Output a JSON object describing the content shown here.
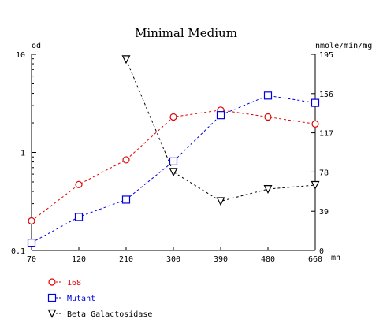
{
  "chart_data": {
    "type": "line",
    "title": "Minimal Medium",
    "x": [
      70,
      120,
      210,
      300,
      390,
      480,
      660
    ],
    "x_tick_labels": [
      "70",
      "120",
      "210",
      "300",
      "390",
      "480",
      "660"
    ],
    "x_unit": "mn",
    "xlim": [
      70,
      660
    ],
    "left_axis": {
      "label": "od",
      "scale": "log",
      "ylim": [
        0.1,
        10
      ],
      "tick_labels": [
        "10",
        "1",
        "0.1"
      ],
      "tick_values": [
        10,
        1,
        0.1
      ]
    },
    "right_axis": {
      "label": "nmole/min/mg",
      "scale": "linear",
      "ylim": [
        0,
        195
      ],
      "tick_labels": [
        "195",
        "156",
        "117",
        "78",
        "39",
        "0"
      ],
      "tick_values": [
        195,
        156,
        117,
        78,
        39,
        0
      ]
    },
    "series": [
      {
        "name": "168",
        "axis": "left",
        "color": "#e00000",
        "marker": "circle",
        "x": [
          70,
          120,
          210,
          300,
          390,
          480,
          660
        ],
        "values": [
          0.2,
          0.47,
          0.84,
          2.3,
          2.7,
          2.3,
          1.95
        ]
      },
      {
        "name": "Mutant",
        "axis": "left",
        "color": "#0000e0",
        "marker": "square",
        "x": [
          70,
          120,
          210,
          300,
          390,
          480,
          660
        ],
        "values": [
          0.12,
          0.22,
          0.33,
          0.81,
          2.4,
          3.8,
          3.2
        ]
      },
      {
        "name": "Beta Galactosidase",
        "axis": "right",
        "color": "#000000",
        "marker": "triangle-down",
        "x": [
          210,
          300,
          390,
          480,
          660
        ],
        "values": [
          190,
          78,
          49,
          61,
          65
        ]
      }
    ],
    "legend_position": "bottom-left",
    "grid": false
  }
}
